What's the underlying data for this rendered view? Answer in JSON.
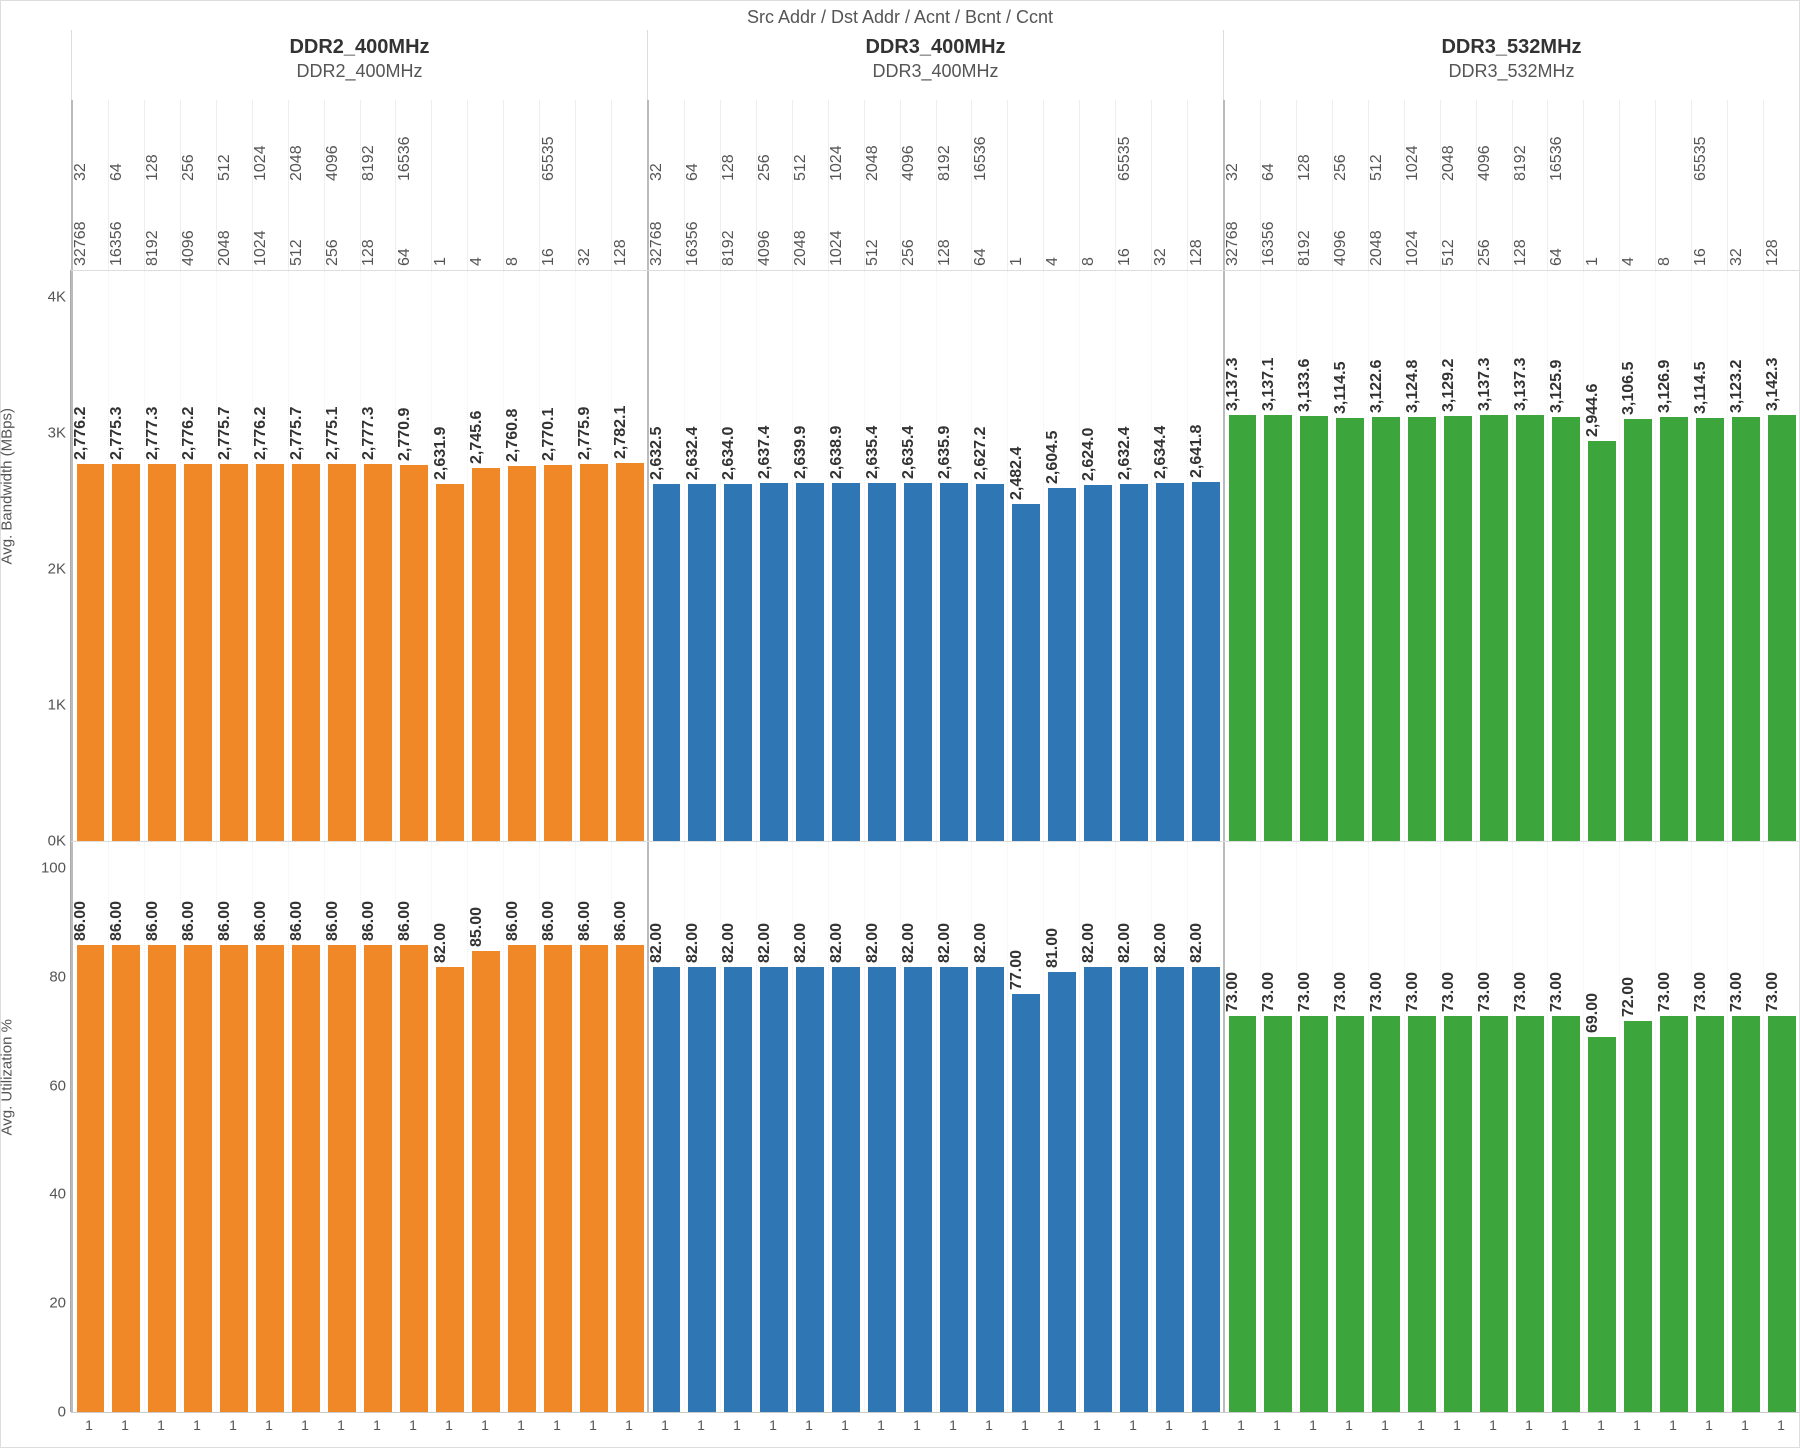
{
  "title": "Src Addr  /  Dst Addr  /  Acnt  /  Bcnt  /  Ccnt",
  "groups": [
    {
      "name": "DDR2_400MHz",
      "subtitle": "DDR2_400MHz",
      "color": "#f08827"
    },
    {
      "name": "DDR3_400MHz",
      "subtitle": "DDR3_400MHz",
      "color": "#2f77b4"
    },
    {
      "name": "DDR3_532MHz",
      "subtitle": "DDR3_532MHz",
      "color": "#3ca53c"
    }
  ],
  "header_row1": [
    "32",
    "64",
    "128",
    "256",
    "512",
    "1024",
    "2048",
    "4096",
    "8192",
    "16536",
    "",
    "",
    "",
    "65535",
    "",
    "",
    "32",
    "64",
    "128",
    "256",
    "512",
    "1024",
    "2048",
    "4096",
    "8192",
    "16536",
    "",
    "",
    "",
    "65535",
    "",
    "",
    "32",
    "64",
    "128",
    "256",
    "512",
    "1024",
    "2048",
    "4096",
    "8192",
    "16536",
    "",
    "",
    "",
    "65535",
    "",
    ""
  ],
  "header_row2": [
    "32768",
    "16356",
    "8192",
    "4096",
    "2048",
    "1024",
    "512",
    "256",
    "128",
    "64",
    "1",
    "4",
    "8",
    "16",
    "32",
    "128",
    "32768",
    "16356",
    "8192",
    "4096",
    "2048",
    "1024",
    "512",
    "256",
    "128",
    "64",
    "1",
    "4",
    "8",
    "16",
    "32",
    "128",
    "32768",
    "16356",
    "8192",
    "4096",
    "2048",
    "1024",
    "512",
    "256",
    "128",
    "64",
    "1",
    "4",
    "8",
    "16",
    "32",
    "128"
  ],
  "top_chart": {
    "ylabel": "Avg. Bandwidth (MBps)",
    "ymax": 4200,
    "ticks": [
      {
        "v": 0,
        "label": "0K"
      },
      {
        "v": 1000,
        "label": "1K"
      },
      {
        "v": 2000,
        "label": "2K"
      },
      {
        "v": 3000,
        "label": "3K"
      },
      {
        "v": 4000,
        "label": "4K"
      }
    ],
    "values": [
      2776.2,
      2775.3,
      2777.3,
      2776.2,
      2775.7,
      2776.2,
      2775.7,
      2775.1,
      2777.3,
      2770.9,
      2631.9,
      2745.6,
      2760.8,
      2770.1,
      2775.9,
      2782.1,
      2632.5,
      2632.4,
      2634.0,
      2637.4,
      2639.9,
      2638.9,
      2635.4,
      2635.4,
      2635.9,
      2627.2,
      2482.4,
      2604.5,
      2624.0,
      2632.4,
      2634.4,
      2641.8,
      3137.3,
      3137.1,
      3133.6,
      3114.5,
      3122.6,
      3124.8,
      3129.2,
      3137.3,
      3137.3,
      3125.9,
      2944.6,
      3106.5,
      3126.9,
      3114.5,
      3123.2,
      3142.3
    ],
    "labels": [
      "2,776.2",
      "2,775.3",
      "2,777.3",
      "2,776.2",
      "2,775.7",
      "2,776.2",
      "2,775.7",
      "2,775.1",
      "2,777.3",
      "2,770.9",
      "2,631.9",
      "2,745.6",
      "2,760.8",
      "2,770.1",
      "2,775.9",
      "2,782.1",
      "2,632.5",
      "2,632.4",
      "2,634.0",
      "2,637.4",
      "2,639.9",
      "2,638.9",
      "2,635.4",
      "2,635.4",
      "2,635.9",
      "2,627.2",
      "2,482.4",
      "2,604.5",
      "2,624.0",
      "2,632.4",
      "2,634.4",
      "2,641.8",
      "3,137.3",
      "3,137.1",
      "3,133.6",
      "3,114.5",
      "3,122.6",
      "3,124.8",
      "3,129.2",
      "3,137.3",
      "3,137.3",
      "3,125.9",
      "2,944.6",
      "3,106.5",
      "3,126.9",
      "3,114.5",
      "3,123.2",
      "3,142.3"
    ]
  },
  "bot_chart": {
    "ylabel": "Avg. Utilization %",
    "ymax": 105,
    "ticks": [
      {
        "v": 0,
        "label": "0"
      },
      {
        "v": 20,
        "label": "20"
      },
      {
        "v": 40,
        "label": "40"
      },
      {
        "v": 60,
        "label": "60"
      },
      {
        "v": 80,
        "label": "80"
      },
      {
        "v": 100,
        "label": "100"
      }
    ],
    "values": [
      86,
      86,
      86,
      86,
      86,
      86,
      86,
      86,
      86,
      86,
      82,
      85,
      86,
      86,
      86,
      86,
      82,
      82,
      82,
      82,
      82,
      82,
      82,
      82,
      82,
      82,
      77,
      81,
      82,
      82,
      82,
      82,
      73,
      73,
      73,
      73,
      73,
      73,
      73,
      73,
      73,
      73,
      69,
      72,
      73,
      73,
      73,
      73
    ],
    "labels": [
      "86.00",
      "86.00",
      "86.00",
      "86.00",
      "86.00",
      "86.00",
      "86.00",
      "86.00",
      "86.00",
      "86.00",
      "82.00",
      "85.00",
      "86.00",
      "86.00",
      "86.00",
      "86.00",
      "82.00",
      "82.00",
      "82.00",
      "82.00",
      "82.00",
      "82.00",
      "82.00",
      "82.00",
      "82.00",
      "82.00",
      "77.00",
      "81.00",
      "82.00",
      "82.00",
      "82.00",
      "82.00",
      "73.00",
      "73.00",
      "73.00",
      "73.00",
      "73.00",
      "73.00",
      "73.00",
      "73.00",
      "73.00",
      "73.00",
      "69.00",
      "72.00",
      "73.00",
      "73.00",
      "73.00",
      "73.00"
    ]
  },
  "x_tick_label": "1",
  "bars_per_group": 16
}
